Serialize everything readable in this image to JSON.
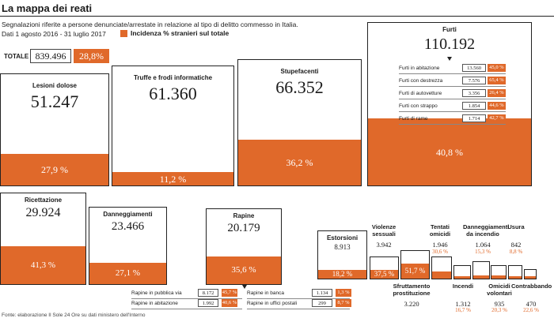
{
  "title": "La mappa dei reati",
  "subtitle": "Segnalazioni riferite a persone denunciate/arrestate in relazione al tipo di delitto commesso in Italia.",
  "date_range": "Dati 1 agosto 2016 - 31 luglio 2017",
  "legend_label": "Incidenza % stranieri sul totale",
  "colors": {
    "accent": "#e0692a",
    "text": "#1a1a1a"
  },
  "total": {
    "label": "TOTALE",
    "value": "839.496",
    "pct": "28,8%"
  },
  "source": "Fonte: elaborazione Il Sole 24 Ore su dati ministero dell'Interno",
  "chart_data": {
    "type": "bar",
    "categories": [
      {
        "name": "Lesioni dolose",
        "value": "51.247",
        "pct": "27,9 %"
      },
      {
        "name": "Truffe e frodi informatiche",
        "value": "61.360",
        "pct": "11,2 %"
      },
      {
        "name": "Stupefacenti",
        "value": "66.352",
        "pct": "36,2 %"
      },
      {
        "name": "Furti",
        "value": "110.192",
        "pct": "40,8 %"
      },
      {
        "name": "Ricettazione",
        "value": "29.924",
        "pct": "41,3 %"
      },
      {
        "name": "Danneggiamenti",
        "value": "23.466",
        "pct": "27,1 %"
      },
      {
        "name": "Rapine",
        "value": "20.179",
        "pct": "35,6 %"
      },
      {
        "name": "Estorsioni",
        "value": "8.913",
        "pct": "18,2 %"
      }
    ],
    "small_categories": [
      {
        "name": "Violenze sessuali",
        "value": "3.942",
        "pct": "37,5 %"
      },
      {
        "name": "Sfruttamento prostituzione",
        "value": "3.220",
        "pct": "51,7 %"
      },
      {
        "name": "Tentati omicidi",
        "value": "1.946",
        "pct": "30,6 %"
      },
      {
        "name": "Incendi",
        "value": "1.312",
        "pct": "16,7 %"
      },
      {
        "name": "Danneggiamenti da incendio",
        "value": "1.064",
        "pct": "15,3 %"
      },
      {
        "name": "Omicidi volontari",
        "value": "935",
        "pct": "20,3 %"
      },
      {
        "name": "Usura",
        "value": "842",
        "pct": "8,8 %"
      },
      {
        "name": "Contrabbando",
        "value": "470",
        "pct": "22,6 %"
      }
    ],
    "furti_detail": [
      {
        "name": "Furti in abitazione",
        "value": "13.560",
        "pct": "45,0 %"
      },
      {
        "name": "Furti con destrezza",
        "value": "7.576",
        "pct": "65,4 %"
      },
      {
        "name": "Furti di autovetture",
        "value": "3.356",
        "pct": "26,4 %"
      },
      {
        "name": "Furti con strappo",
        "value": "1.854",
        "pct": "44,6 %"
      },
      {
        "name": "Furti di rame",
        "value": "1.714",
        "pct": "42,7 %"
      }
    ],
    "rapine_detail": [
      {
        "name": "Rapine in pubblica via",
        "value": "8.172",
        "pct": "45,7 %"
      },
      {
        "name": "Rapine in abitazione",
        "value": "1.992",
        "pct": "40,6 %"
      },
      {
        "name": "Rapine in banca",
        "value": "1.134",
        "pct": "1,3 %"
      },
      {
        "name": "Rapine in uffici postali",
        "value": "299",
        "pct": "8,7 %"
      }
    ]
  }
}
